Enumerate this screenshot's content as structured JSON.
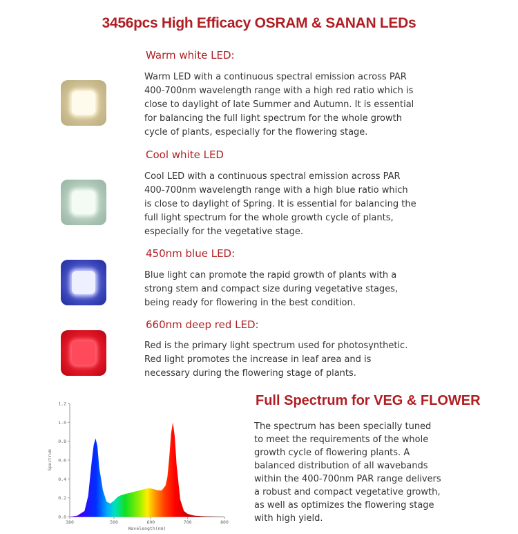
{
  "title": "3456pcs High Efficacy OSRAM & SANAN LEDs",
  "sections": [
    {
      "heading": "Warm white LED:",
      "lines": [
        "Warm LED with a continuous spectral emission across PAR",
        "400-700nm wavelength range with a high red ratio which is",
        "close to daylight of late Summer and Autumn. It is essential",
        "for balancing the full light spectrum for the whole growth",
        "cycle of plants, especially for the flowering stage."
      ]
    },
    {
      "heading": "Cool white LED",
      "lines": [
        "Cool LED with a continuous spectral emission across PAR",
        "400-700nm wavelength range with a high blue ratio which",
        "is close to daylight of Spring. It is essential for balancing the",
        "full light spectrum for the whole growth cycle of plants,",
        "especially for the vegetative stage."
      ]
    },
    {
      "heading": "450nm blue LED:",
      "lines": [
        "Blue light can promote the rapid growth of plants with a",
        "strong stem and compact size during vegetative stages,",
        "being ready for flowering in the best condition."
      ]
    },
    {
      "heading": "660nm deep red LED:",
      "lines": [
        "Red is the primary light spectrum used for photosynthetic.",
        "Red light promotes the increase in leaf area and is",
        "necessary during the flowering stage of plants."
      ]
    }
  ],
  "full_spectrum": {
    "heading": "Full Spectrum for VEG & FLOWER",
    "lines": [
      "The spectrum has been specially tuned",
      "to meet the requirements of the whole",
      "growth cycle of flowering plants. A",
      "balanced distribution of all wavebands",
      "within the 400-700nm PAR range delivers",
      "a robust and compact vegetative growth,",
      "as well as optimizes the flowering stage",
      "with high yield."
    ]
  },
  "colors": {
    "accent": "#b01e23",
    "text": "#333333"
  },
  "chart_data": {
    "type": "area",
    "xlabel": "Wavelength(nm)",
    "ylabel": "Spectrum",
    "xlim": [
      380,
      800
    ],
    "ylim": [
      0.0,
      1.2
    ],
    "x_ticks": [
      "380",
      "500",
      "600",
      "700",
      "800"
    ],
    "y_ticks": [
      "0.0",
      "0.2",
      "0.4",
      "0.6",
      "0.8",
      "1.0",
      "1.2"
    ],
    "grid": false,
    "fill": "rainbow-by-wavelength",
    "x": [
      380,
      400,
      420,
      430,
      440,
      445,
      450,
      455,
      460,
      470,
      480,
      490,
      500,
      510,
      520,
      530,
      540,
      550,
      560,
      570,
      580,
      590,
      600,
      610,
      620,
      630,
      640,
      645,
      650,
      655,
      660,
      665,
      670,
      680,
      690,
      700,
      720,
      740,
      760,
      780,
      800
    ],
    "y": [
      0.0,
      0.01,
      0.06,
      0.22,
      0.6,
      0.76,
      0.83,
      0.75,
      0.52,
      0.28,
      0.16,
      0.14,
      0.17,
      0.21,
      0.23,
      0.24,
      0.25,
      0.26,
      0.27,
      0.28,
      0.29,
      0.3,
      0.3,
      0.29,
      0.28,
      0.28,
      0.33,
      0.42,
      0.62,
      0.88,
      1.0,
      0.85,
      0.55,
      0.18,
      0.06,
      0.03,
      0.01,
      0.005,
      0.003,
      0.001,
      0.0
    ]
  }
}
